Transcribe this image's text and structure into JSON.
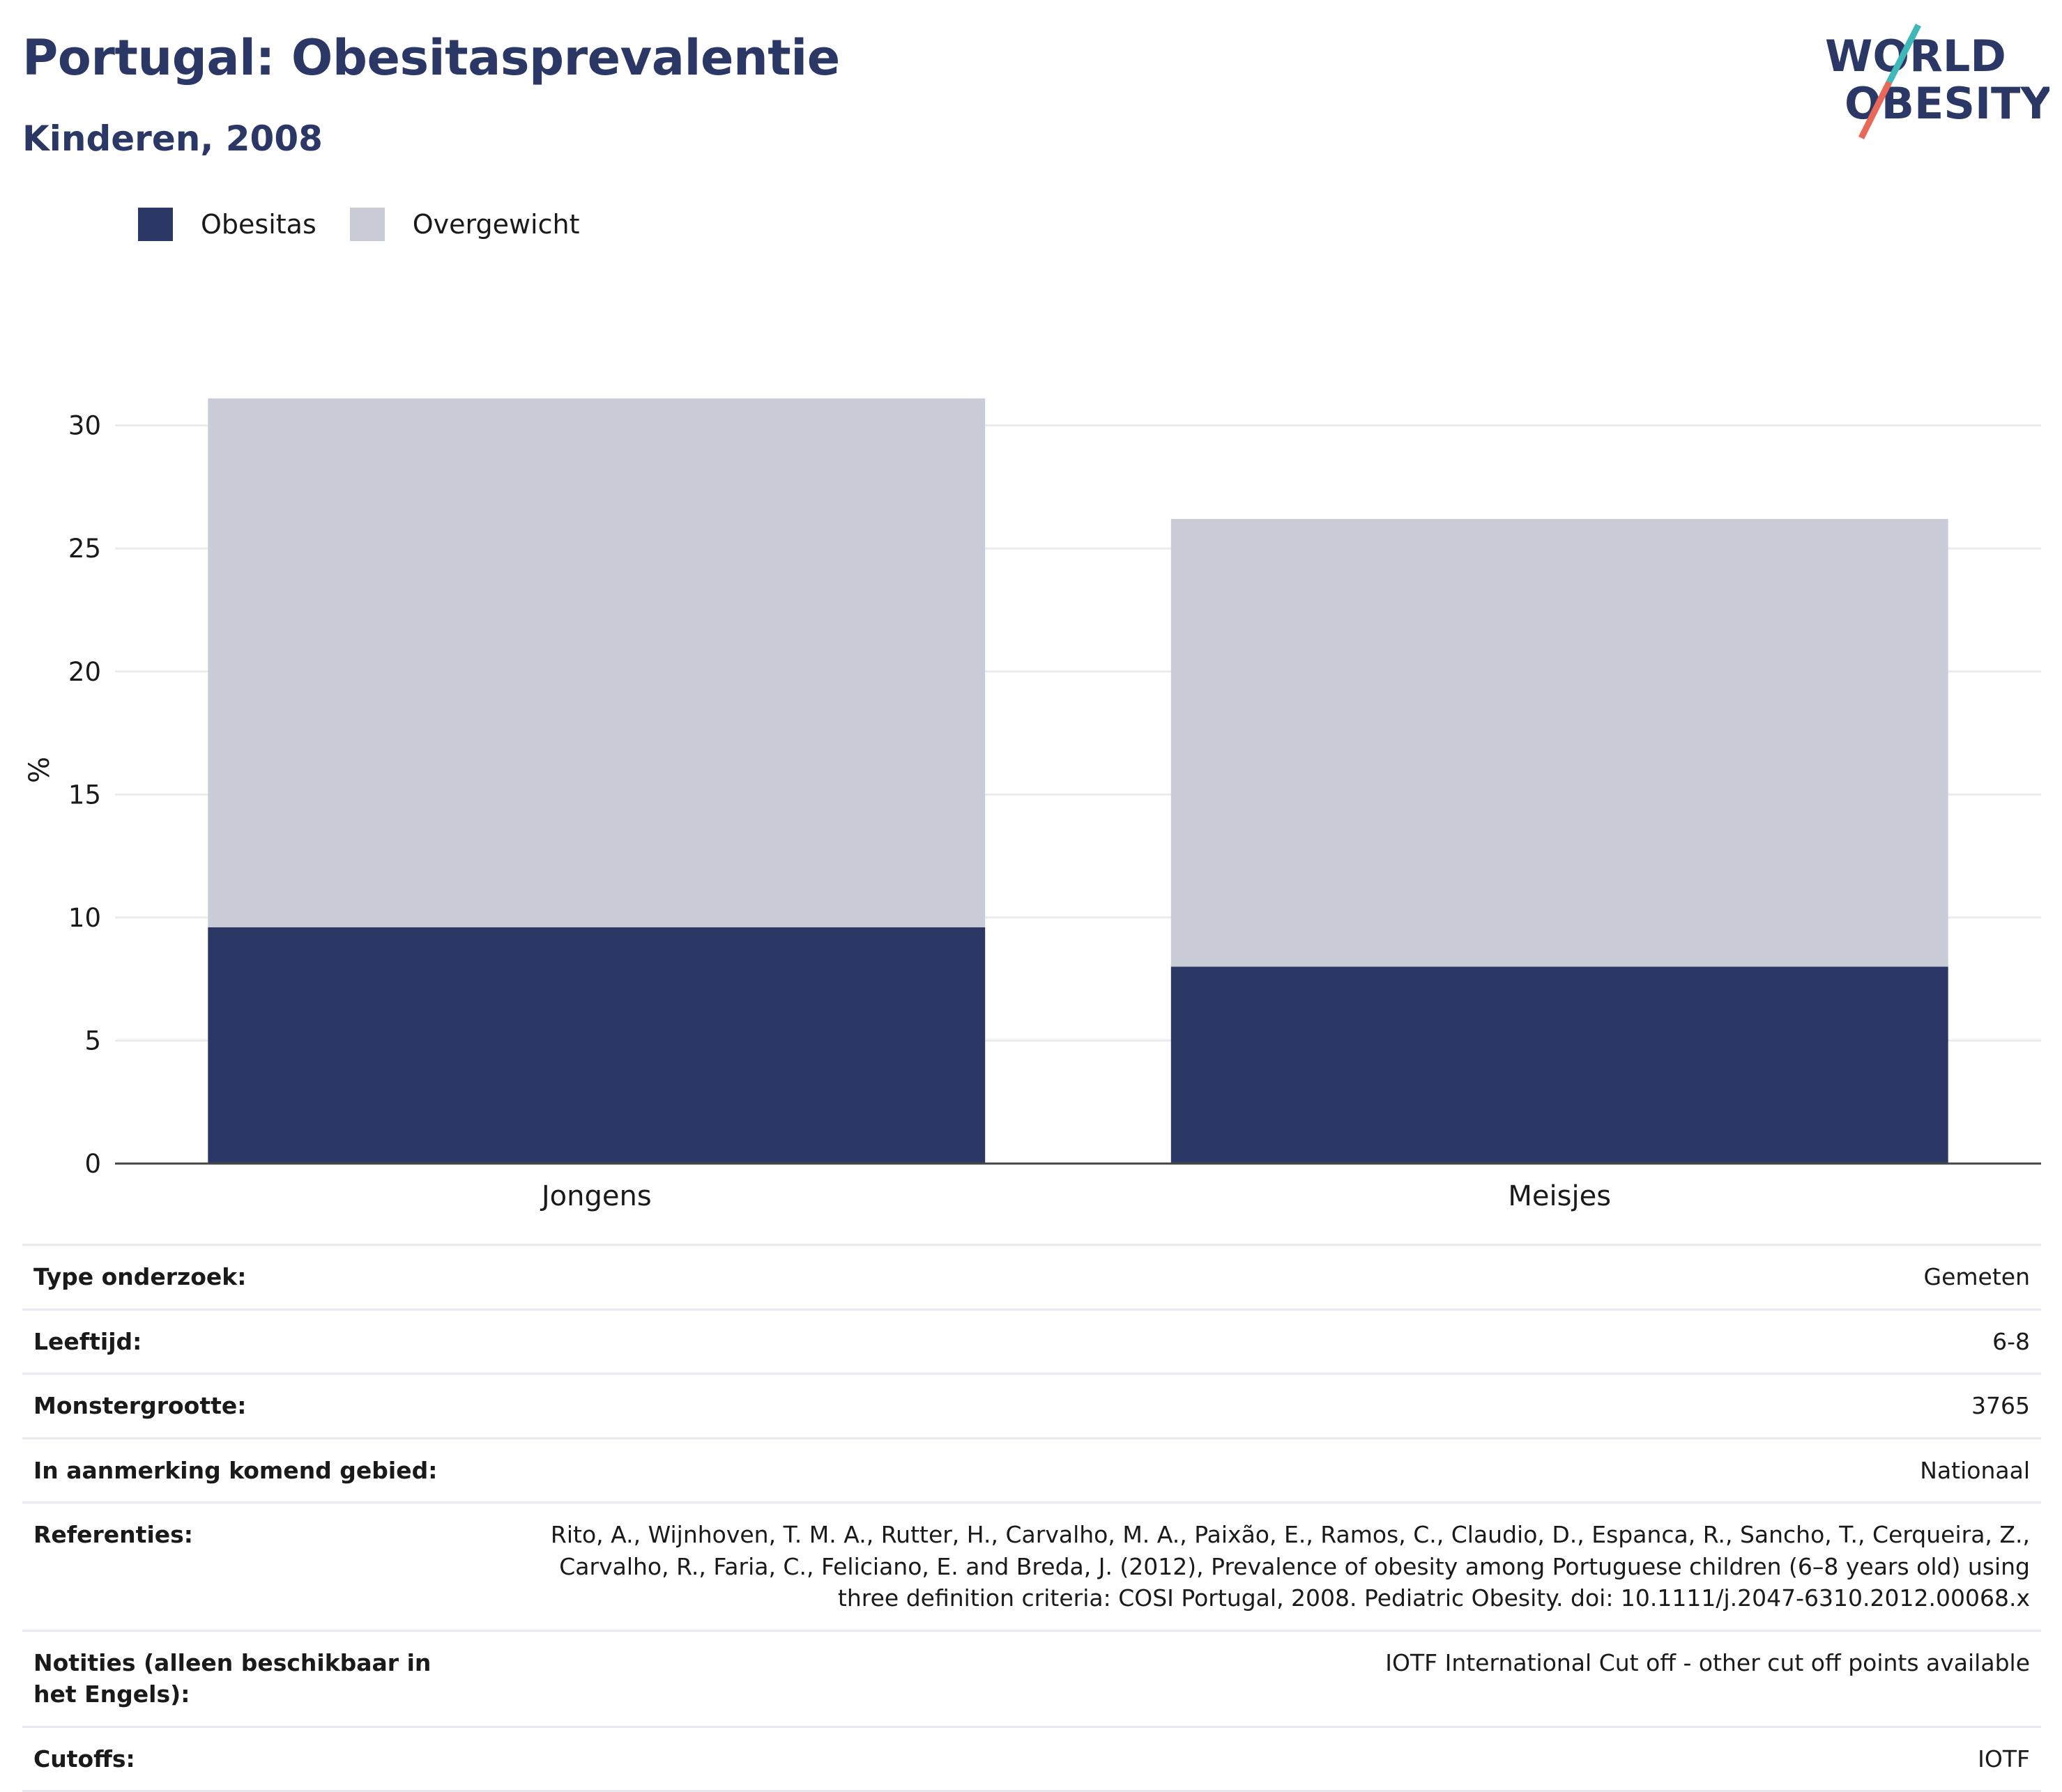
{
  "header": {
    "title": "Portugal: Obesitasprevalentie",
    "subtitle": "Kinderen, 2008"
  },
  "logo": {
    "line1": "WORLD",
    "line2": "OBESITY",
    "colors": {
      "text": "#2b3765",
      "slash_top": "#3fb8b8",
      "slash_bottom": "#e8695a"
    }
  },
  "chart_data": {
    "type": "bar",
    "stacked": true,
    "categories": [
      "Jongens",
      "Meisjes"
    ],
    "series": [
      {
        "name": "Obesitas",
        "values": [
          9.6,
          8.0
        ],
        "color": "#2b3765"
      },
      {
        "name": "Overgewicht",
        "values": [
          21.5,
          18.2
        ],
        "color": "#c9cbd7"
      }
    ],
    "totals": [
      31.1,
      26.2
    ],
    "ylabel": "%",
    "ylim": [
      0,
      32
    ],
    "yticks": [
      0,
      5,
      10,
      15,
      20,
      25,
      30
    ],
    "grid": true,
    "legend_position": "top-left"
  },
  "meta": [
    {
      "key": "Type onderzoek:",
      "value": "Gemeten"
    },
    {
      "key": "Leeftijd:",
      "value": "6-8"
    },
    {
      "key": "Monstergrootte:",
      "value": "3765"
    },
    {
      "key": "In aanmerking komend gebied:",
      "value": "Nationaal"
    },
    {
      "key": "Referenties:",
      "value": "Rito, A., Wijnhoven, T. M. A., Rutter, H., Carvalho, M. A., Paixão, E., Ramos, C., Claudio, D., Espanca, R., Sancho, T., Cerqueira, Z., Carvalho, R., Faria, C., Feliciano, E. and Breda, J. (2012), Prevalence of obesity among Portuguese children (6–8 years old) using three definition criteria: COSI Portugal, 2008. Pediatric Obesity. doi: 10.1111/j.2047-6310.2012.00068.x"
    },
    {
      "key": "Notities (alleen beschikbaar in het Engels):",
      "value": "IOTF International Cut off - other cut off points available"
    },
    {
      "key": "Cutoffs:",
      "value": "IOTF"
    }
  ]
}
